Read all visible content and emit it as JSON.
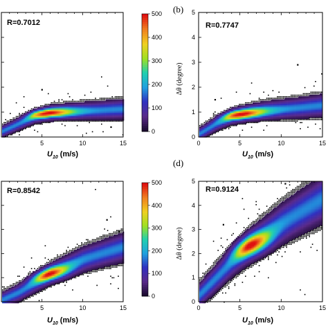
{
  "chart_data": [
    {
      "type": "heatmap",
      "panel": "",
      "r_label": "R=0.7012",
      "xlabel": "U10 (m/s)",
      "xlabel_main": "U",
      "xlabel_sub": "10",
      "xlabel_unit": " (m/s)",
      "ylabel": "",
      "xlim": [
        0,
        15
      ],
      "ylim": [
        0,
        5
      ],
      "xticks": [
        "5",
        "10",
        "15"
      ],
      "yticks": [],
      "trend": {
        "x": [
          0,
          2,
          4,
          6,
          8,
          10,
          12,
          15
        ],
        "y": [
          0.25,
          0.55,
          0.85,
          1.0,
          1.05,
          1.08,
          1.1,
          1.15
        ]
      },
      "spread": 0.12,
      "peak": [
        5.5,
        1.0
      ],
      "outliers": [
        [
          5.0,
          1.9
        ],
        [
          13.5,
          0.4
        ]
      ],
      "colorbar": {
        "ticks": [
          "500",
          "400",
          "300",
          "200",
          "100",
          "0"
        ],
        "range": [
          0,
          500
        ]
      }
    },
    {
      "type": "heatmap",
      "panel": "(b)",
      "r_label": "R=0.7747",
      "xlabel": "U10 (m/s)",
      "xlabel_main": "U",
      "xlabel_sub": "10",
      "xlabel_unit": " (m/s)",
      "ylabel": "Δθ (degree)",
      "xlim": [
        0,
        15
      ],
      "ylim": [
        0,
        5
      ],
      "xticks": [
        "0",
        "5",
        "10",
        "15"
      ],
      "yticks": [
        "0",
        "1",
        "2",
        "3",
        "4",
        "5"
      ],
      "trend": {
        "x": [
          0,
          2,
          4,
          6,
          8,
          10,
          12,
          15
        ],
        "y": [
          0.15,
          0.55,
          0.85,
          1.0,
          1.1,
          1.15,
          1.2,
          1.3
        ]
      },
      "spread": 0.14,
      "peak": [
        5.0,
        0.95
      ],
      "outliers": [
        [
          12.0,
          2.9
        ],
        [
          2.0,
          1.5
        ]
      ]
    },
    {
      "type": "heatmap",
      "panel": "",
      "r_label": "R=0.8542",
      "xlabel": "U10 (m/s)",
      "xlabel_main": "U",
      "xlabel_sub": "10",
      "xlabel_unit": " (m/s)",
      "ylabel": "",
      "xlim": [
        0,
        15
      ],
      "ylim": [
        0,
        5
      ],
      "xticks": [
        "5",
        "10",
        "15"
      ],
      "yticks": [],
      "trend": {
        "x": [
          0,
          2,
          4,
          6,
          8,
          10,
          12,
          15
        ],
        "y": [
          0.1,
          0.4,
          0.8,
          1.2,
          1.5,
          1.8,
          2.0,
          2.3
        ]
      },
      "spread": 0.2,
      "peak": [
        5.5,
        1.2
      ],
      "outliers": [
        [
          13.0,
          3.4
        ],
        [
          14.5,
          2.9
        ]
      ],
      "colorbar": {
        "ticks": [
          "500",
          "400",
          "300",
          "200",
          "100",
          "0"
        ],
        "range": [
          0,
          500
        ]
      }
    },
    {
      "type": "heatmap",
      "panel": "(d)",
      "r_label": "R=0.9124",
      "xlabel": "U10 (m/s)",
      "xlabel_main": "U",
      "xlabel_sub": "10",
      "xlabel_unit": " (m/s)",
      "ylabel": "Δθ (degree)",
      "xlim": [
        0,
        15
      ],
      "ylim": [
        0,
        5
      ],
      "xticks": [
        "0",
        "5",
        "10",
        "15"
      ],
      "yticks": [
        "0",
        "1",
        "2",
        "3",
        "4",
        "5"
      ],
      "trend": {
        "x": [
          0,
          2,
          4,
          6,
          8,
          10,
          12,
          15
        ],
        "y": [
          0.3,
          1.0,
          1.7,
          2.3,
          2.8,
          3.3,
          3.7,
          4.3
        ]
      },
      "spread": 0.35,
      "peak": [
        6.0,
        2.4
      ],
      "outliers": [
        [
          3.0,
          3.2
        ],
        [
          10.5,
          4.9
        ]
      ]
    }
  ],
  "colors": {
    "scale": [
      "#1a0a2e",
      "#5a2a8a",
      "#3030c0",
      "#20a0e0",
      "#20d0b0",
      "#a0e020",
      "#f0d020",
      "#f08020",
      "#e01010"
    ],
    "scatter": "#000000"
  }
}
